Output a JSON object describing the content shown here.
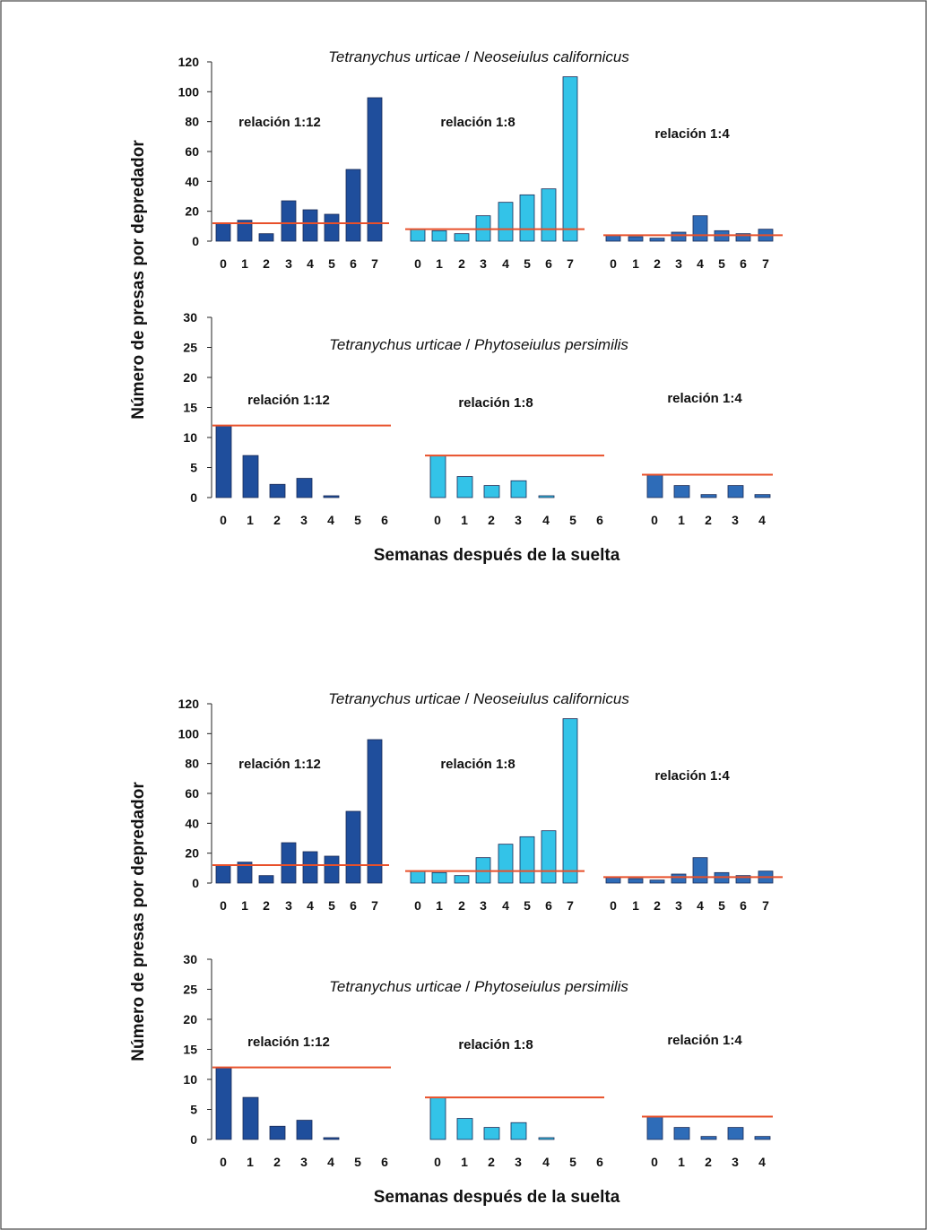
{
  "figure": {
    "panels": [
      {
        "top_chart": {
          "title_part1": "Tetranychus urticae",
          "title_sep": " / ",
          "title_part2": "Neoseiulus californicus",
          "yticks": [
            "0",
            "20",
            "40",
            "60",
            "80",
            "100",
            "120"
          ]
        },
        "bottom_chart": {
          "title_part1": "Tetranychus urticae",
          "title_sep": " / ",
          "title_part2": "Phytoseiulus persimilis",
          "yticks": [
            "0",
            "5",
            "10",
            "15",
            "20",
            "25",
            "30"
          ]
        },
        "ylabel": "Número de presas por depredador",
        "xlabel": "Semanas después de la suelta"
      },
      {
        "top_chart": {
          "title_part1": "Tetranychus urticae",
          "title_sep": " / ",
          "title_part2": "Neoseiulus californicus",
          "yticks": [
            "0",
            "20",
            "40",
            "60",
            "80",
            "100",
            "120"
          ]
        },
        "bottom_chart": {
          "title_part1": "Tetranychus urticae",
          "title_sep": " / ",
          "title_part2": "Phytoseiulus persimilis",
          "yticks": [
            "0",
            "5",
            "10",
            "15",
            "20",
            "25",
            "30"
          ]
        },
        "ylabel": "Número de presas por depredador",
        "xlabel": "Semanas después de la suelta"
      }
    ]
  },
  "colors": {
    "dark_blue": "#1f4e9c",
    "light_blue": "#33c3e8",
    "mid_blue": "#2e6cb8",
    "red_line": "#e8502a",
    "axis": "#222222"
  },
  "chart_data": [
    {
      "type": "bar",
      "title": "Tetranychus urticae / Neoseiulus californicus",
      "ylim": [
        0,
        120
      ],
      "groups": [
        {
          "label": "relación 1:12",
          "categories": [
            "0",
            "1",
            "2",
            "3",
            "4",
            "5",
            "6",
            "7"
          ],
          "values": [
            12,
            14,
            5,
            27,
            21,
            18,
            48,
            96
          ],
          "reference_line": 12,
          "color": "dark_blue"
        },
        {
          "label": "relación 1:8",
          "categories": [
            "0",
            "1",
            "2",
            "3",
            "4",
            "5",
            "6",
            "7"
          ],
          "values": [
            8,
            7,
            5,
            17,
            26,
            31,
            35,
            110
          ],
          "reference_line": 8,
          "color": "light_blue"
        },
        {
          "label": "relación 1:4",
          "categories": [
            "0",
            "1",
            "2",
            "3",
            "4",
            "5",
            "6",
            "7"
          ],
          "values": [
            4,
            3,
            2,
            6,
            17,
            7,
            5,
            8
          ],
          "reference_line": 4,
          "color": "mid_blue"
        }
      ]
    },
    {
      "type": "bar",
      "title": "Tetranychus urticae / Phytoseiulus persimilis",
      "ylim": [
        0,
        30
      ],
      "groups": [
        {
          "label": "relación 1:12",
          "categories": [
            "0",
            "1",
            "2",
            "3",
            "4",
            "5",
            "6"
          ],
          "values": [
            12,
            7,
            2.2,
            3.2,
            0.3,
            0,
            0
          ],
          "reference_line": 12,
          "color": "dark_blue"
        },
        {
          "label": "relación 1:8",
          "categories": [
            "0",
            "1",
            "2",
            "3",
            "4",
            "5",
            "6"
          ],
          "values": [
            7,
            3.5,
            2,
            2.8,
            0.3,
            0,
            0
          ],
          "reference_line": 7,
          "color": "light_blue"
        },
        {
          "label": "relación 1:4",
          "categories": [
            "0",
            "1",
            "2",
            "3",
            "4"
          ],
          "values": [
            3.8,
            2,
            0.5,
            2,
            0.5
          ],
          "reference_line": 3.8,
          "color": "mid_blue"
        }
      ]
    }
  ]
}
